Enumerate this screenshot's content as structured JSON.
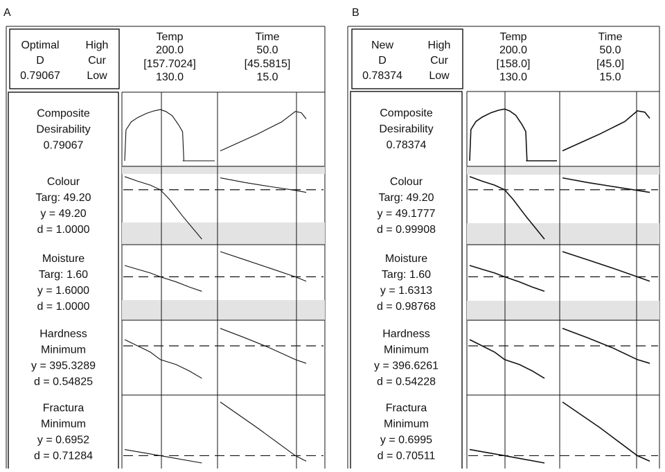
{
  "chart_data": [
    {
      "type": "line",
      "panel_label": "A",
      "header": {
        "label_top": "Optimal",
        "label_mid": "D",
        "d_value": "0.79067",
        "legend_high": "High",
        "legend_cur": "Cur",
        "legend_low": "Low"
      },
      "factors": [
        {
          "name": "Temp",
          "high": "200.0",
          "current": "[157.7024]",
          "low": "130.0",
          "high_value": 200.0,
          "current_value": 157.7024,
          "low_value": 130.0
        },
        {
          "name": "Time",
          "high": "50.0",
          "current": "[45.5815]",
          "low": "15.0",
          "high_value": 50.0,
          "current_value": 45.5815,
          "low_value": 15.0
        }
      ],
      "responses": [
        {
          "lines": [
            "Composite",
            "Desirability",
            "0.79067"
          ],
          "kind": "composite",
          "temp_curve": {
            "x": [
              130,
              131,
              135,
              140,
              147,
              153,
              157.7,
              162,
              167,
              172,
              175,
              176,
              200
            ],
            "y": [
              0,
              0.5,
              0.63,
              0.7,
              0.77,
              0.81,
              0.83,
              0.8,
              0.73,
              0.58,
              0.47,
              0,
              0
            ]
          },
          "time_curve": {
            "x": [
              15,
              20,
              25,
              30,
              35,
              40,
              45.58,
              48,
              50
            ],
            "y": [
              0.16,
              0.25,
              0.34,
              0.43,
              0.53,
              0.63,
              0.8,
              0.78,
              0.68
            ]
          }
        },
        {
          "lines": [
            "Colour",
            "Targ: 49.20",
            "y = 49.20",
            "d = 1.0000"
          ],
          "kind": "target",
          "temp_curve": {
            "x": [
              130,
              140,
              150,
              157.7,
              165,
              175,
              190
            ],
            "y": [
              0.95,
              0.88,
              0.82,
              0.75,
              0.6,
              0.35,
              0.0
            ]
          },
          "time_curve": {
            "x": [
              15,
              25,
              35,
              45.58,
              50
            ],
            "y": [
              0.93,
              0.86,
              0.8,
              0.74,
              0.71
            ]
          }
        },
        {
          "lines": [
            "Moisture",
            "Targ: 1.60",
            "y = 1.6000",
            "d = 1.0000"
          ],
          "kind": "target",
          "temp_curve": {
            "x": [
              130,
              140,
              150,
              157.7,
              170,
              180,
              190
            ],
            "y": [
              0.78,
              0.72,
              0.66,
              0.6,
              0.52,
              0.44,
              0.37
            ]
          },
          "time_curve": {
            "x": [
              15,
              25,
              35,
              45.58,
              50
            ],
            "y": [
              1.0,
              0.87,
              0.74,
              0.6,
              0.53
            ]
          }
        },
        {
          "lines": [
            "Hardness",
            "Minimum",
            "y = 395.3289",
            "d = 0.54825"
          ],
          "kind": "min",
          "temp_curve": {
            "x": [
              130,
              140,
              150,
              157.7,
              170,
              180,
              190
            ],
            "y": [
              0.8,
              0.7,
              0.6,
              0.48,
              0.4,
              0.3,
              0.18
            ]
          },
          "time_curve": {
            "x": [
              15,
              25,
              35,
              45.58,
              50
            ],
            "y": [
              0.98,
              0.83,
              0.67,
              0.48,
              0.42
            ]
          }
        },
        {
          "lines": [
            "Fractura",
            "Minimum",
            "y = 0.6952",
            "d = 0.71284"
          ],
          "kind": "min",
          "temp_curve": {
            "x": [
              130,
              157.7,
              190
            ],
            "y": [
              0.22,
              0.12,
              0.0
            ]
          },
          "time_curve": {
            "x": [
              15,
              30,
              45.58,
              50
            ],
            "y": [
              1.0,
              0.58,
              0.12,
              0.03
            ]
          }
        }
      ]
    },
    {
      "type": "line",
      "panel_label": "B",
      "header": {
        "label_top": "New",
        "label_mid": "D",
        "d_value": "0.78374",
        "legend_high": "High",
        "legend_cur": "Cur",
        "legend_low": "Low"
      },
      "factors": [
        {
          "name": "Temp",
          "high": "200.0",
          "current": "[158.0]",
          "low": "130.0",
          "high_value": 200.0,
          "current_value": 158.0,
          "low_value": 130.0
        },
        {
          "name": "Time",
          "high": "50.0",
          "current": "[45.0]",
          "low": "15.0",
          "high_value": 50.0,
          "current_value": 45.0,
          "low_value": 15.0
        }
      ],
      "responses": [
        {
          "lines": [
            "Composite",
            "Desirability",
            "0.78374"
          ],
          "kind": "composite",
          "temp_curve": {
            "x": [
              130,
              131,
              135,
              140,
              147,
              153,
              158,
              162,
              167,
              172,
              175,
              176,
              200
            ],
            "y": [
              0,
              0.5,
              0.63,
              0.7,
              0.77,
              0.81,
              0.83,
              0.8,
              0.73,
              0.58,
              0.47,
              0,
              0
            ]
          },
          "time_curve": {
            "x": [
              15,
              20,
              25,
              30,
              35,
              40,
              45,
              48,
              50
            ],
            "y": [
              0.16,
              0.25,
              0.34,
              0.43,
              0.53,
              0.63,
              0.8,
              0.78,
              0.68
            ]
          }
        },
        {
          "lines": [
            "Colour",
            "Targ: 49.20",
            "y = 49.1777",
            "d = 0.99908"
          ],
          "kind": "target",
          "temp_curve": {
            "x": [
              130,
              140,
              150,
              158,
              165,
              175,
              190
            ],
            "y": [
              0.95,
              0.88,
              0.82,
              0.75,
              0.6,
              0.35,
              0.0
            ]
          },
          "time_curve": {
            "x": [
              15,
              25,
              35,
              45,
              50
            ],
            "y": [
              0.93,
              0.86,
              0.8,
              0.74,
              0.71
            ]
          }
        },
        {
          "lines": [
            "Moisture",
            "Targ: 1.60",
            "y = 1.6313",
            "d = 0.98768"
          ],
          "kind": "target",
          "temp_curve": {
            "x": [
              130,
              140,
              150,
              158,
              170,
              180,
              190
            ],
            "y": [
              0.78,
              0.72,
              0.66,
              0.6,
              0.52,
              0.44,
              0.37
            ]
          },
          "time_curve": {
            "x": [
              15,
              25,
              35,
              45,
              50
            ],
            "y": [
              1.0,
              0.87,
              0.74,
              0.6,
              0.53
            ]
          }
        },
        {
          "lines": [
            "Hardness",
            "Minimum",
            "y = 396.6261",
            "d = 0.54228"
          ],
          "kind": "min",
          "temp_curve": {
            "x": [
              130,
              140,
              150,
              158,
              170,
              180,
              190
            ],
            "y": [
              0.8,
              0.7,
              0.6,
              0.48,
              0.4,
              0.3,
              0.18
            ]
          },
          "time_curve": {
            "x": [
              15,
              25,
              35,
              45,
              50
            ],
            "y": [
              0.98,
              0.83,
              0.67,
              0.48,
              0.42
            ]
          }
        },
        {
          "lines": [
            "Fractura",
            "Minimum",
            "y = 0.6995",
            "d = 0.70511"
          ],
          "kind": "min",
          "temp_curve": {
            "x": [
              130,
              158,
              190
            ],
            "y": [
              0.22,
              0.12,
              0.0
            ]
          },
          "time_curve": {
            "x": [
              15,
              30,
              45,
              50
            ],
            "y": [
              1.0,
              0.58,
              0.12,
              0.03
            ]
          }
        }
      ]
    }
  ]
}
